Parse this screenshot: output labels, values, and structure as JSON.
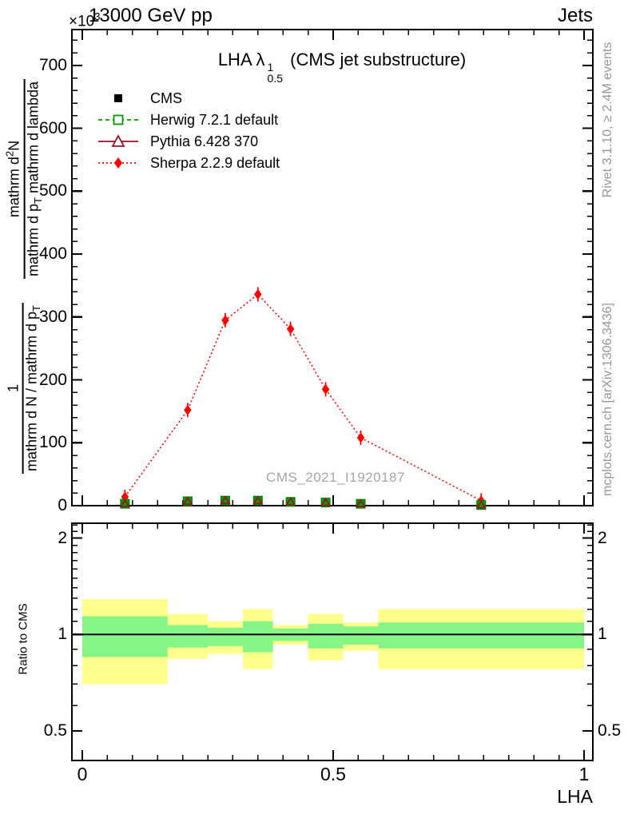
{
  "header": {
    "exponent_base": "×10",
    "exponent_power": "3",
    "title_left": "13000 GeV pp",
    "title_right": "Jets"
  },
  "plot_title": {
    "prefix": "LHA λ",
    "sup": "1",
    "sub": "0.5",
    "suffix": "(CMS jet substructure)"
  },
  "watermark": "CMS_2021_I1920187",
  "side_notes": {
    "top": "Rivet 3.1.10, ≥ 2.4M events",
    "bottom": "mcplots.cern.ch [arXiv:1306.3436]"
  },
  "ylabel": {
    "frac1_num": "1",
    "frac1_den": "mathrm d N / mathrm d p",
    "frac1_den_sub": "T",
    "frac2_num_a": "mathrm d",
    "frac2_num_sup": "2",
    "frac2_num_b": "N",
    "frac2_den_a": "mathrm d p",
    "frac2_den_sub": "T",
    "frac2_den_b": " mathrm d lambda"
  },
  "ratio_ylabel": "Ratio to CMS",
  "xlabel": "LHA",
  "legend": [
    {
      "label": "CMS",
      "marker": "filled-square",
      "color": "#000000",
      "line": "none"
    },
    {
      "label": "Herwig 7.2.1 default",
      "marker": "open-square",
      "color": "#009c00",
      "line": "dashed"
    },
    {
      "label": "Pythia 6.428 370",
      "marker": "open-triangle",
      "color": "#9c1129",
      "line": "solid"
    },
    {
      "label": "Sherpa 2.2.9 default",
      "marker": "filled-diamond",
      "color": "#ff0000",
      "line": "dotted"
    }
  ],
  "chart_data": {
    "type": "line",
    "title": "LHA lambda^1_0.5 (CMS jet substructure)",
    "xlabel": "LHA",
    "ylabel": "1/(dN/dpT) d2N/(dpT dlambda)  x10^3",
    "xlim": [
      -0.021,
      1.017
    ],
    "ylim": [
      0,
      757
    ],
    "x_ticks": [
      {
        "v": 0,
        "label": "0"
      },
      {
        "v": 0.5,
        "label": "0.5"
      },
      {
        "v": 1,
        "label": "1"
      }
    ],
    "x_minor_step": 0.05,
    "y_ticks": [
      0,
      100,
      200,
      300,
      400,
      500,
      600,
      700
    ],
    "y_minor_step": 20,
    "grid": false,
    "legend_position": "top-left",
    "bin_edges": [
      0,
      0.17,
      0.25,
      0.32,
      0.38,
      0.45,
      0.52,
      0.59,
      1.0
    ],
    "x": [
      0.085,
      0.21,
      0.285,
      0.35,
      0.415,
      0.485,
      0.555,
      0.795
    ],
    "series": [
      {
        "name": "CMS",
        "values": [
          3,
          7,
          8,
          8,
          6,
          5,
          3,
          1
        ]
      },
      {
        "name": "Herwig 7.2.1 default",
        "values": [
          3,
          7,
          8,
          8,
          6,
          5,
          3,
          1
        ]
      },
      {
        "name": "Pythia 6.428 370",
        "values": [
          3,
          7,
          8,
          8,
          6,
          5,
          3,
          1
        ]
      },
      {
        "name": "Sherpa 2.2.9 default",
        "values": [
          14,
          152,
          295,
          336,
          281,
          185,
          108,
          8
        ]
      }
    ],
    "ratio": {
      "ylabel": "Ratio to CMS",
      "scale": "log2",
      "ylim": [
        0.404,
        2.23
      ],
      "y_ticks": [
        {
          "v": 2,
          "label": "2"
        },
        {
          "v": 1,
          "label": "1"
        },
        {
          "v": 0.5,
          "label": "0.5"
        }
      ],
      "y_minor": [
        0.6,
        0.7,
        0.8,
        0.9,
        1.1,
        1.2,
        1.3,
        1.4,
        1.5,
        1.6,
        1.7,
        1.8,
        1.9,
        2.1,
        2.2
      ],
      "reference_line": 1,
      "bands": [
        {
          "x0": 0.0,
          "x1": 0.17,
          "yellow": [
            0.7,
            1.29
          ],
          "green": [
            0.85,
            1.14
          ]
        },
        {
          "x0": 0.17,
          "x1": 0.25,
          "yellow": [
            0.84,
            1.16
          ],
          "green": [
            0.91,
            1.07
          ]
        },
        {
          "x0": 0.25,
          "x1": 0.32,
          "yellow": [
            0.87,
            1.1
          ],
          "green": [
            0.92,
            1.05
          ]
        },
        {
          "x0": 0.32,
          "x1": 0.38,
          "yellow": [
            0.78,
            1.2
          ],
          "green": [
            0.88,
            1.1
          ]
        },
        {
          "x0": 0.38,
          "x1": 0.45,
          "yellow": [
            0.93,
            1.07
          ],
          "green": [
            0.955,
            1.045
          ]
        },
        {
          "x0": 0.45,
          "x1": 0.52,
          "yellow": [
            0.83,
            1.16
          ],
          "green": [
            0.905,
            1.08
          ]
        },
        {
          "x0": 0.52,
          "x1": 0.59,
          "yellow": [
            0.89,
            1.09
          ],
          "green": [
            0.93,
            1.06
          ]
        },
        {
          "x0": 0.59,
          "x1": 1.0,
          "yellow": [
            0.78,
            1.2
          ],
          "green": [
            0.905,
            1.09
          ]
        }
      ]
    },
    "colors": {
      "band_yellow": "#ffff8c",
      "band_green": "#85f585",
      "sherpa": "#ff0000",
      "pythia": "#9c1129",
      "herwig": "#009c00",
      "cms": "#000000",
      "annotation_gray": "#969696"
    }
  }
}
